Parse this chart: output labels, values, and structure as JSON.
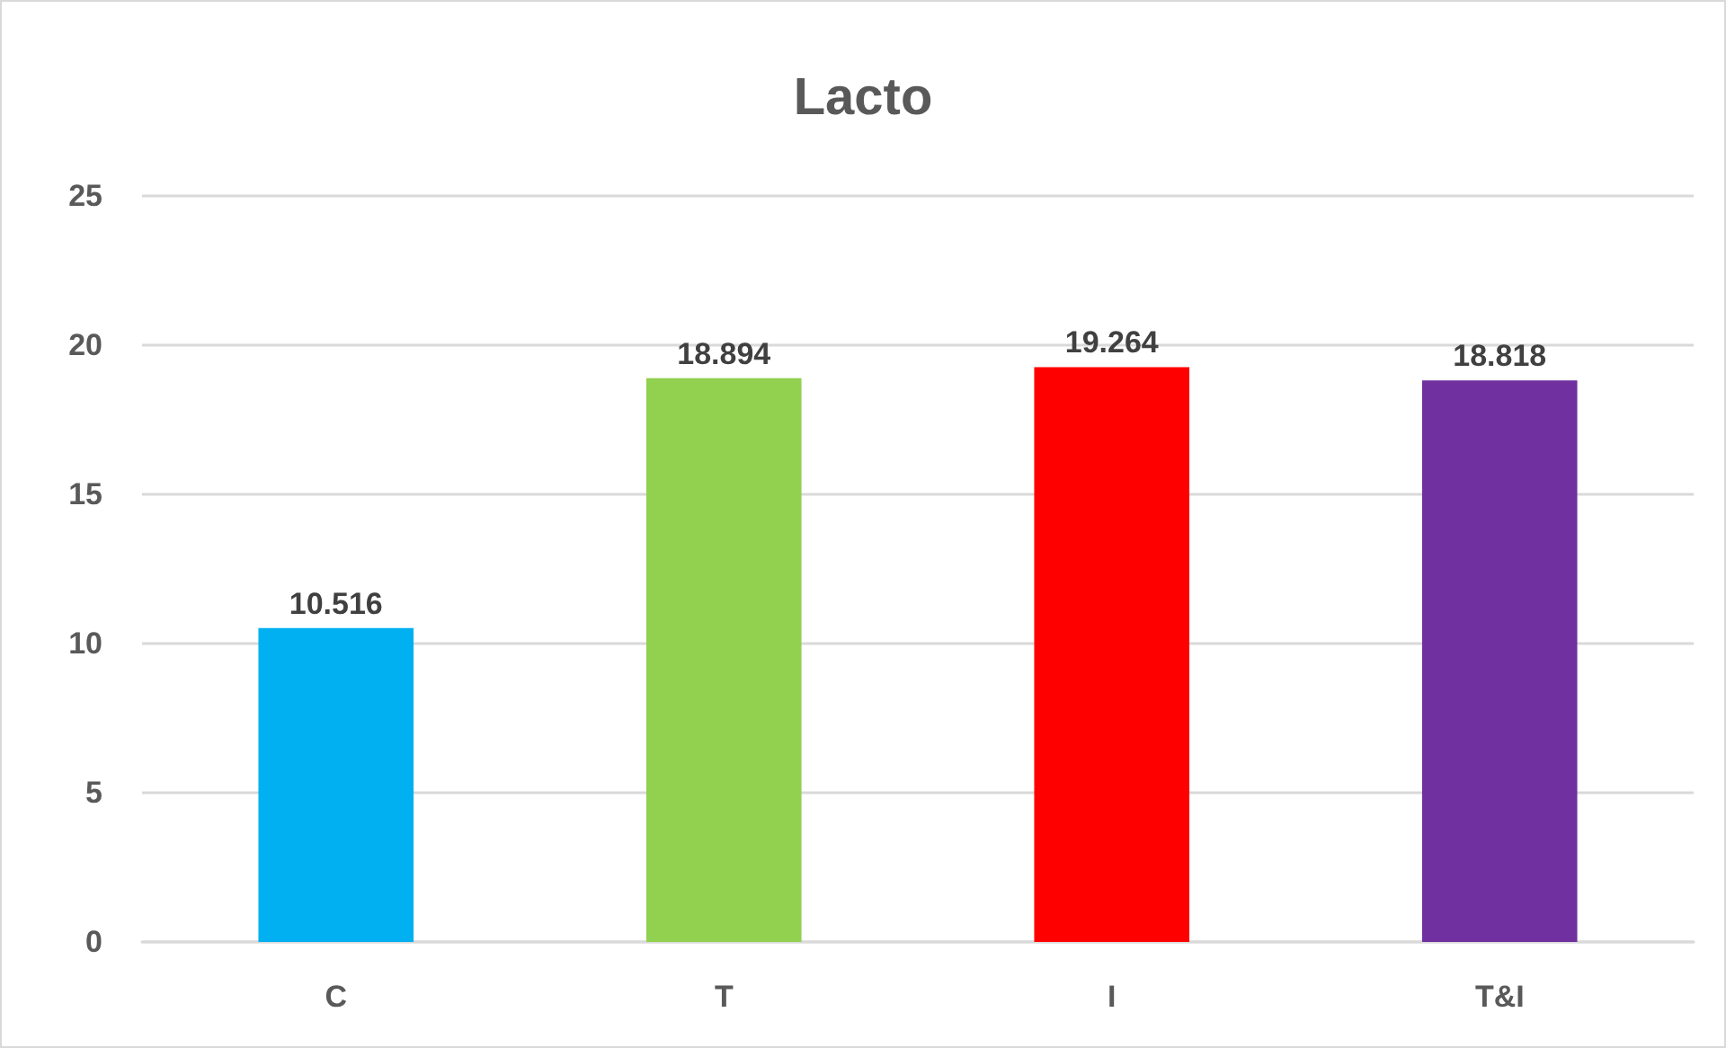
{
  "chart_data": {
    "type": "bar",
    "title": "Lacto",
    "categories": [
      "C",
      "T",
      "I",
      "T&I"
    ],
    "values": [
      10.516,
      18.894,
      19.264,
      18.818
    ],
    "colors": [
      "#00b0f0",
      "#92d050",
      "#ff0000",
      "#7030a0"
    ],
    "ylim": [
      0,
      25
    ],
    "yticks": [
      0,
      5,
      10,
      15,
      20,
      25
    ],
    "grid": "y",
    "data_labels": true
  }
}
